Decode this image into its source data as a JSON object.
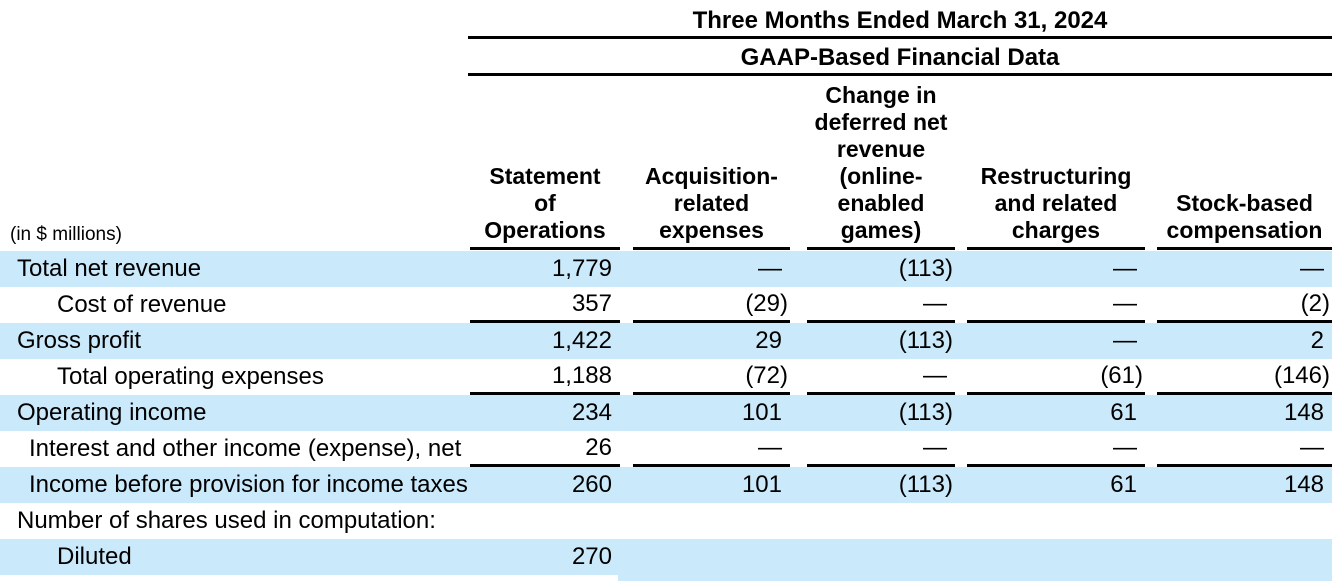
{
  "title_block": {
    "period": "Three Months Ended March 31, 2024",
    "basis": "GAAP-Based Financial Data"
  },
  "units_note": "(in $ millions)",
  "columns": [
    {
      "label": "Statement\nof\nOperations"
    },
    {
      "label": "Acquisition-\nrelated\nexpenses"
    },
    {
      "label": "Change in\ndeferred net\nrevenue\n(online-\nenabled\ngames)"
    },
    {
      "label": "Restructuring\nand related\ncharges"
    },
    {
      "label": "Stock-based\ncompensation"
    }
  ],
  "rows": [
    {
      "label": "Total net revenue",
      "indent": 0,
      "shaded": true,
      "ruled": false,
      "values": [
        "1,779",
        "—",
        "(113)",
        "—",
        "—"
      ]
    },
    {
      "label": "Cost of revenue",
      "indent": 2,
      "shaded": false,
      "ruled": true,
      "values": [
        "357",
        "(29)",
        "—",
        "—",
        "(2)"
      ]
    },
    {
      "label": "Gross profit",
      "indent": 0,
      "shaded": true,
      "ruled": false,
      "values": [
        "1,422",
        "29",
        "(113)",
        "—",
        "2"
      ]
    },
    {
      "label": "Total operating expenses",
      "indent": 2,
      "shaded": false,
      "ruled": true,
      "values": [
        "1,188",
        "(72)",
        "—",
        "(61)",
        "(146)"
      ]
    },
    {
      "label": "Operating income",
      "indent": 0,
      "shaded": true,
      "ruled": false,
      "values": [
        "234",
        "101",
        "(113)",
        "61",
        "148"
      ]
    },
    {
      "label": "Interest and other income (expense), net",
      "indent": 1,
      "shaded": false,
      "ruled": true,
      "values": [
        "26",
        "—",
        "—",
        "—",
        "—"
      ]
    },
    {
      "label": "Income before provision for income taxes",
      "indent": 1,
      "shaded": true,
      "ruled": false,
      "values": [
        "260",
        "101",
        "(113)",
        "61",
        "148"
      ]
    },
    {
      "label": "Number of shares used in computation:",
      "indent": 0,
      "shaded": false,
      "ruled": false,
      "values": [
        "",
        "",
        "",
        "",
        ""
      ]
    },
    {
      "label": "Diluted",
      "indent": 2,
      "shaded": true,
      "ruled": false,
      "values": [
        "270",
        "",
        "",
        "",
        ""
      ]
    }
  ],
  "colors": {
    "row_shade": "#CAE9FA",
    "rule": "#000000",
    "text": "#000000",
    "background": "#FFFFFF"
  }
}
